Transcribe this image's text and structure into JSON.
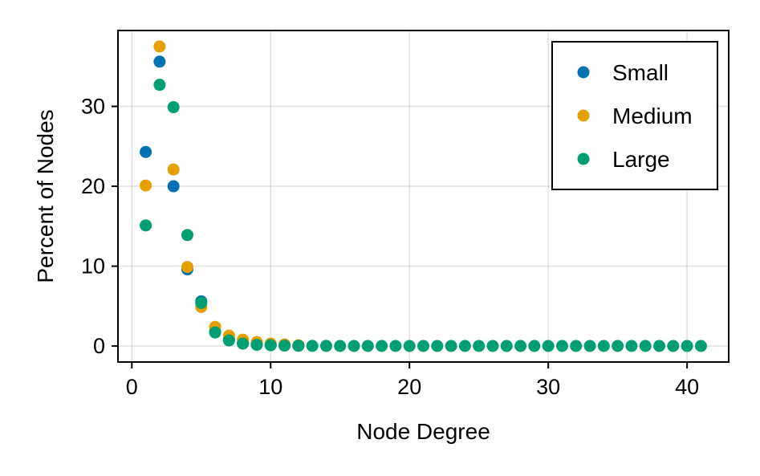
{
  "chart_data": {
    "type": "scatter",
    "xlabel": "Node Degree",
    "ylabel": "Percent of Nodes",
    "xlim": [
      -1,
      43
    ],
    "ylim": [
      -2,
      39.5
    ],
    "xticks": [
      0,
      10,
      20,
      30,
      40
    ],
    "yticks": [
      0,
      10,
      20,
      30
    ],
    "grid": true,
    "legend_position": "top-right",
    "series": [
      {
        "name": "Small",
        "color": "#0072b2",
        "x": [
          1,
          2,
          3,
          4,
          5,
          6,
          7,
          8,
          9,
          10,
          11,
          12
        ],
        "y": [
          24.3,
          35.6,
          20.0,
          9.6,
          5.6,
          1.8,
          0.9,
          0.4,
          0.3,
          0.2,
          0.1,
          0.05
        ]
      },
      {
        "name": "Medium",
        "color": "#e69f00",
        "x": [
          1,
          2,
          3,
          4,
          5,
          6,
          7,
          8,
          9,
          10,
          11,
          12
        ],
        "y": [
          20.1,
          37.5,
          22.1,
          9.9,
          4.9,
          2.4,
          1.3,
          0.8,
          0.5,
          0.3,
          0.2,
          0.1
        ]
      },
      {
        "name": "Large",
        "color": "#009e73",
        "x": [
          1,
          2,
          3,
          4,
          5,
          6,
          7,
          8,
          9,
          10,
          11,
          12,
          13,
          14,
          15,
          16,
          17,
          18,
          19,
          20,
          21,
          22,
          23,
          24,
          25,
          26,
          27,
          28,
          29,
          30,
          31,
          32,
          33,
          34,
          35,
          36,
          37,
          38,
          39,
          40,
          41
        ],
        "y": [
          15.1,
          32.7,
          29.9,
          13.9,
          5.4,
          1.7,
          0.7,
          0.3,
          0.15,
          0.1,
          0.05,
          0.03,
          0.02,
          0.02,
          0.01,
          0.01,
          0.01,
          0.01,
          0.01,
          0.01,
          0.01,
          0.01,
          0.01,
          0.01,
          0.01,
          0.01,
          0.01,
          0.01,
          0.01,
          0.01,
          0.01,
          0.01,
          0.01,
          0.01,
          0.01,
          0.01,
          0.01,
          0.01,
          0.01,
          0.01,
          0.01
        ]
      }
    ]
  }
}
